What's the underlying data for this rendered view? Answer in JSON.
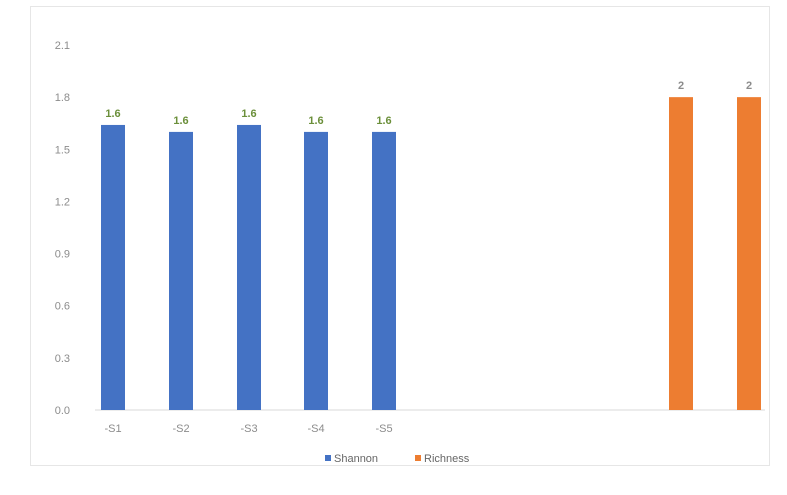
{
  "chart_data": {
    "type": "bar",
    "title": "",
    "xlabel": "",
    "ylabel": "",
    "ylim": [
      0.0,
      2.1
    ],
    "yticks": [
      "0.0",
      "0.3",
      "0.6",
      "0.9",
      "1.2",
      "1.5",
      "1.8",
      "2.1"
    ],
    "grid": false,
    "legend": "bottom",
    "series": [
      {
        "name": "Shannon",
        "color": "#4472c4",
        "categories": [
          "-S1",
          "-S2",
          "-S3",
          "-S4",
          "-S5"
        ],
        "values": [
          1.64,
          1.6,
          1.64,
          1.6,
          1.6
        ],
        "labels": [
          "1.6",
          "1.6",
          "1.6",
          "1.6",
          "1.6"
        ]
      },
      {
        "name": "Richness",
        "color": "#ed7d31",
        "categories": [
          "",
          ""
        ],
        "values": [
          1.8,
          1.8
        ],
        "labels": [
          "2",
          "2"
        ]
      }
    ]
  }
}
